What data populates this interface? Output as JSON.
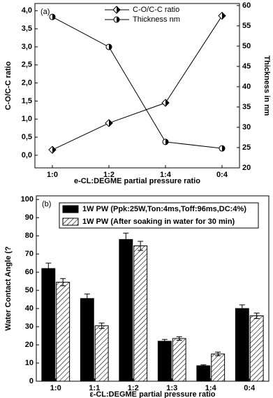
{
  "chart_data": [
    {
      "type": "line",
      "panel_label": "(a)",
      "categories": [
        "1:0",
        "1:2",
        "1:4",
        "0:4"
      ],
      "x_label": "e-CL:DEGME partial pressure ratio",
      "y_label": "C-O/C-C ratio",
      "y2_label": "Thickness in nm",
      "ylim": [
        -0.35,
        4.2
      ],
      "yticks": [
        {
          "value": 0,
          "label": "0,0"
        },
        {
          "value": 0.5,
          "label": "0,5"
        },
        {
          "value": 1,
          "label": "1,0"
        },
        {
          "value": 1.5,
          "label": "1,5"
        },
        {
          "value": 2,
          "label": "2,0"
        },
        {
          "value": 2.5,
          "label": "2,5"
        },
        {
          "value": 3,
          "label": "3,0"
        },
        {
          "value": 3.5,
          "label": "3,5"
        },
        {
          "value": 4,
          "label": "4,0"
        }
      ],
      "y2lim": [
        20,
        60.5
      ],
      "y2ticks": [
        20,
        25,
        30,
        35,
        40,
        45,
        50,
        55,
        60
      ],
      "series": [
        {
          "name": "C-O/C-C ratio",
          "color": "#000000",
          "marker": "diamond",
          "values": [
            0.15,
            0.89,
            1.45,
            3.86
          ]
        },
        {
          "name": "Thickness nm",
          "color": "#000000",
          "marker": "circle",
          "axis": "y2",
          "values": [
            57.2,
            49.8,
            26.4,
            24.8
          ]
        }
      ]
    },
    {
      "type": "bar",
      "panel_label": "(b)",
      "categories": [
        "1:0",
        "1:1",
        "1:2",
        "1:3",
        "1:4",
        "0:4"
      ],
      "x_label": "ε-CL:DEGME partial pressure ratio",
      "y_label": "Water Contact Angle (?",
      "ylim": [
        0,
        102
      ],
      "yticks": [
        0,
        10,
        20,
        30,
        40,
        50,
        60,
        70,
        80,
        90,
        100
      ],
      "series": [
        {
          "name": "1W PW (Ppk:25W,Ton:4ms,Toff:96ms,DC:4%)",
          "color": "#000000",
          "pattern": "solid",
          "values": [
            62,
            45.5,
            78,
            22,
            8.5,
            40
          ],
          "errors": [
            3,
            2.5,
            3.5,
            1,
            0.5,
            2
          ]
        },
        {
          "name": "1W PW (After soaking in water for 30 min)",
          "color": "#ffffff",
          "pattern": "hatch",
          "values": [
            54.5,
            30.5,
            74.5,
            23.5,
            15,
            36
          ],
          "errors": [
            2,
            1.5,
            2.5,
            1,
            1,
            1.5
          ]
        }
      ]
    }
  ]
}
